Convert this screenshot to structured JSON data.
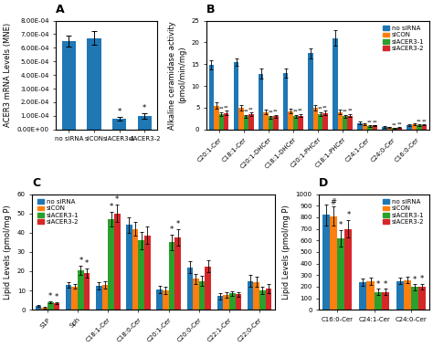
{
  "chart_data": [
    {
      "type": "bar",
      "title": "A",
      "categories": [
        "no siRNA",
        "siCON",
        "siACER3-1",
        "siACER3-2"
      ],
      "values": [
        0.00065,
        0.00067,
        8e-05,
        0.0001
      ],
      "errors": [
        4e-05,
        5e-05,
        1.5e-05,
        2e-05
      ],
      "y_label": "ACER3 mRNA Levels (MNE)",
      "ylim": [
        0,
        0.0008
      ],
      "yticks": [
        {
          "value": 0,
          "label": "0.00E+00"
        },
        {
          "value": 0.0001,
          "label": "1.00E-04"
        },
        {
          "value": 0.0002,
          "label": "2.00E-04"
        },
        {
          "value": 0.0003,
          "label": "3.00E-04"
        },
        {
          "value": 0.0004,
          "label": "4.00E-04"
        },
        {
          "value": 0.0005,
          "label": "5.00E-04"
        },
        {
          "value": 0.0006,
          "label": "6.00E-04"
        },
        {
          "value": 0.0007,
          "label": "7.00E-04"
        },
        {
          "value": 0.0008,
          "label": "8.00E-04"
        }
      ],
      "annotations": [
        {
          "text": "*",
          "category": "siACER3-1"
        },
        {
          "text": "*",
          "category": "siACER3-2"
        }
      ]
    },
    {
      "type": "bar",
      "title": "B",
      "categories": [
        "C20:1-Cer",
        "C18:1-Cer",
        "C20:1-DHCer",
        "C18:1-DHCer",
        "C20:1-PHCer",
        "C18:1-PHCer",
        "C24:1-Cer",
        "C24:0-Cer",
        "C16:0-Cer"
      ],
      "series": [
        {
          "name": "no siRNA",
          "values": [
            14.8,
            15.5,
            12.8,
            13.0,
            17.5,
            21.0,
            1.5,
            0.6,
            1.0
          ],
          "errors": [
            1.0,
            0.8,
            1.2,
            1.0,
            1.2,
            1.8,
            0.3,
            0.15,
            0.2
          ]
        },
        {
          "name": "siCON",
          "values": [
            5.5,
            5.0,
            4.0,
            4.2,
            5.0,
            4.0,
            1.2,
            0.5,
            1.2
          ],
          "errors": [
            0.7,
            0.6,
            0.5,
            0.5,
            0.6,
            0.5,
            0.2,
            0.1,
            0.15
          ]
        },
        {
          "name": "siACER3-1",
          "values": [
            3.5,
            3.0,
            2.8,
            3.0,
            3.5,
            3.0,
            0.8,
            0.3,
            1.0
          ],
          "errors": [
            0.5,
            0.4,
            0.4,
            0.4,
            0.5,
            0.4,
            0.15,
            0.08,
            0.12
          ]
        },
        {
          "name": "siACER3-2",
          "values": [
            3.8,
            3.5,
            3.0,
            3.2,
            3.8,
            3.2,
            0.9,
            0.4,
            1.1
          ],
          "errors": [
            0.5,
            0.4,
            0.4,
            0.4,
            0.5,
            0.4,
            0.15,
            0.08,
            0.12
          ]
        }
      ],
      "y_label": "Alkaline ceramidase activity\n(pmol/min/mg)",
      "ylim": [
        0,
        25
      ],
      "yticks": [
        0,
        5,
        10,
        15,
        20,
        25
      ],
      "legend": "upper right",
      "annotations": [
        {
          "text": "**",
          "category": "C20:1-Cer",
          "series": "siACER3-1"
        },
        {
          "text": "**",
          "category": "C20:1-Cer",
          "series": "siACER3-2"
        },
        {
          "text": "**",
          "category": "C18:1-Cer",
          "series": "siACER3-1"
        },
        {
          "text": "**",
          "category": "C18:1-Cer",
          "series": "siACER3-2"
        },
        {
          "text": "**",
          "category": "C20:1-DHCer",
          "series": "siACER3-1"
        },
        {
          "text": "**",
          "category": "C20:1-DHCer",
          "series": "siACER3-2"
        },
        {
          "text": "**",
          "category": "C18:1-DHCer",
          "series": "siACER3-1"
        },
        {
          "text": "**",
          "category": "C18:1-DHCer",
          "series": "siACER3-2"
        },
        {
          "text": "**",
          "category": "C20:1-PHCer",
          "series": "siACER3-1"
        },
        {
          "text": "**",
          "category": "C20:1-PHCer",
          "series": "siACER3-2"
        },
        {
          "text": "**",
          "category": "C18:1-PHCer",
          "series": "siACER3-1"
        },
        {
          "text": "**",
          "category": "C18:1-PHCer",
          "series": "siACER3-2"
        },
        {
          "text": "**",
          "category": "C24:1-Cer",
          "series": "siACER3-1"
        },
        {
          "text": "**",
          "category": "C24:1-Cer",
          "series": "siACER3-2"
        },
        {
          "text": "**",
          "category": "C24:0-Cer",
          "series": "siACER3-1"
        },
        {
          "text": "**",
          "category": "C24:0-Cer",
          "series": "siACER3-2"
        },
        {
          "text": "**",
          "category": "C16:0-Cer",
          "series": "siACER3-1"
        },
        {
          "text": "**",
          "category": "C16:0-Cer",
          "series": "siACER3-2"
        }
      ]
    },
    {
      "type": "bar",
      "title": "C",
      "categories": [
        "S1P",
        "Sph",
        "C18:1-Cer",
        "C18:0-Cer",
        "C20:1-Cer",
        "C20:0-Cer",
        "C22:1-Cer",
        "C22:0-Cer"
      ],
      "series": [
        {
          "name": "no siRNA",
          "values": [
            2.0,
            13.0,
            12.5,
            44.0,
            10.5,
            22.0,
            7.0,
            15.0
          ],
          "errors": [
            0.4,
            1.5,
            2.0,
            4.0,
            2.0,
            3.0,
            1.5,
            3.0
          ]
        },
        {
          "name": "siCON",
          "values": [
            1.0,
            12.0,
            13.0,
            42.0,
            10.0,
            16.0,
            7.5,
            14.5
          ],
          "errors": [
            0.3,
            1.2,
            1.8,
            3.5,
            1.8,
            2.5,
            1.4,
            2.5
          ]
        },
        {
          "name": "siACER3-1",
          "values": [
            3.8,
            20.5,
            47.0,
            36.0,
            35.0,
            15.0,
            8.5,
            10.0
          ],
          "errors": [
            0.6,
            2.5,
            4.0,
            4.5,
            4.0,
            2.5,
            1.2,
            2.0
          ]
        },
        {
          "name": "siACER3-2",
          "values": [
            3.5,
            19.0,
            50.0,
            38.5,
            37.5,
            22.5,
            8.0,
            11.0
          ],
          "errors": [
            0.6,
            2.5,
            4.5,
            4.5,
            4.2,
            3.0,
            1.2,
            2.2
          ]
        }
      ],
      "y_label": "Lipid Levels (pmol/mg P)",
      "ylim": [
        0,
        60
      ],
      "yticks": [
        0,
        10,
        20,
        30,
        40,
        50,
        60
      ],
      "legend": "upper left",
      "annotations": [
        {
          "text": "*",
          "category": "S1P",
          "series": "siACER3-1"
        },
        {
          "text": "*",
          "category": "S1P",
          "series": "siACER3-2"
        },
        {
          "text": "*",
          "category": "Sph",
          "series": "siACER3-1"
        },
        {
          "text": "*",
          "category": "Sph",
          "series": "siACER3-2"
        },
        {
          "text": "*",
          "category": "C18:1-Cer",
          "series": "siACER3-1"
        },
        {
          "text": "*",
          "category": "C18:1-Cer",
          "series": "siACER3-2"
        },
        {
          "text": "*",
          "category": "C20:1-Cer",
          "series": "siACER3-1"
        },
        {
          "text": "*",
          "category": "C20:1-Cer",
          "series": "siACER3-2"
        }
      ]
    },
    {
      "type": "bar",
      "title": "D",
      "categories": [
        "C16:0-Cer",
        "C24:1-Cer",
        "C24:0-Cer"
      ],
      "series": [
        {
          "name": "no siRNA",
          "values": [
            820,
            240,
            250
          ],
          "errors": [
            90,
            30,
            30
          ]
        },
        {
          "name": "siCON",
          "values": [
            810,
            245,
            255
          ],
          "errors": [
            80,
            30,
            28
          ]
        },
        {
          "name": "siACER3-1",
          "values": [
            620,
            155,
            195
          ],
          "errors": [
            70,
            25,
            25
          ]
        },
        {
          "name": "siACER3-2",
          "values": [
            700,
            155,
            200
          ],
          "errors": [
            75,
            25,
            25
          ]
        }
      ],
      "y_label": "Lipid Levels (pmol/mg P)",
      "ylim": [
        0,
        1000
      ],
      "yticks": [
        0,
        100,
        200,
        300,
        400,
        500,
        600,
        700,
        800,
        900,
        1000
      ],
      "legend": "upper right",
      "annotations": [
        {
          "text": "#",
          "category": "C16:0-Cer",
          "series": "siCON"
        },
        {
          "text": "*",
          "category": "C16:0-Cer",
          "series": "siACER3-1"
        },
        {
          "text": "*",
          "category": "C16:0-Cer",
          "series": "siACER3-2"
        },
        {
          "text": "*",
          "category": "C24:1-Cer",
          "series": "siACER3-1"
        },
        {
          "text": "*",
          "category": "C24:1-Cer",
          "series": "siACER3-2"
        },
        {
          "text": "*",
          "category": "C24:0-Cer",
          "series": "siACER3-1"
        },
        {
          "text": "*",
          "category": "C24:0-Cer",
          "series": "siACER3-2"
        }
      ]
    }
  ]
}
